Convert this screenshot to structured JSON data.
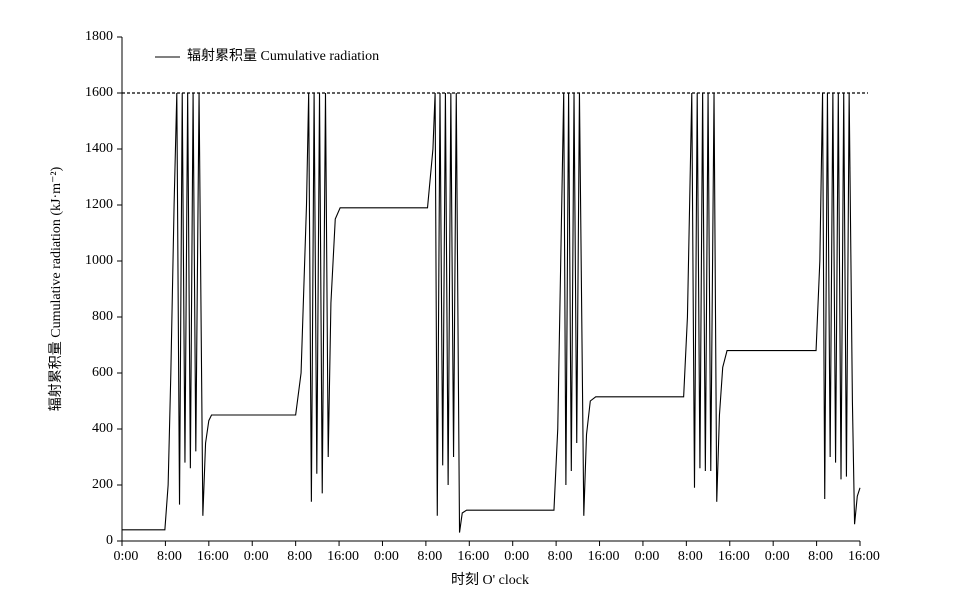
{
  "chart_data": {
    "type": "line",
    "x_label": "时刻 O' clock",
    "y_label": "辐射累积量 Cumulative radiation (kJ·m⁻²)",
    "xlim": [
      0,
      136
    ],
    "ylim": [
      0,
      1800
    ],
    "xticks": [
      {
        "value": 0,
        "label": "0:00"
      },
      {
        "value": 8,
        "label": "8:00"
      },
      {
        "value": 16,
        "label": "16:00"
      },
      {
        "value": 24,
        "label": "0:00"
      },
      {
        "value": 32,
        "label": "8:00"
      },
      {
        "value": 40,
        "label": "16:00"
      },
      {
        "value": 48,
        "label": "0:00"
      },
      {
        "value": 56,
        "label": "8:00"
      },
      {
        "value": 64,
        "label": "16:00"
      },
      {
        "value": 72,
        "label": "0:00"
      },
      {
        "value": 80,
        "label": "8:00"
      },
      {
        "value": 88,
        "label": "16:00"
      },
      {
        "value": 96,
        "label": "0:00"
      },
      {
        "value": 104,
        "label": "8:00"
      },
      {
        "value": 112,
        "label": "16:00"
      },
      {
        "value": 120,
        "label": "0:00"
      },
      {
        "value": 128,
        "label": "8:00"
      },
      {
        "value": 136,
        "label": "16:00"
      }
    ],
    "yticks": [
      0,
      200,
      400,
      600,
      800,
      1000,
      1200,
      1400,
      1600,
      1800
    ],
    "reference_line": 1600,
    "legend": "upper left",
    "series": [
      {
        "name": "辐射累积量 Cumulative radiation",
        "color": "#000000",
        "x": [
          0,
          7.9,
          8.5,
          9,
          9.6,
          10.1,
          10.6,
          11.1,
          11.6,
          12.1,
          12.6,
          13.1,
          13.6,
          14.2,
          14.9,
          15.4,
          16,
          16.5,
          32,
          33,
          34,
          34.4,
          34.9,
          35.4,
          35.9,
          36.4,
          36.9,
          37.5,
          38,
          38.5,
          39.3,
          40.2,
          56.3,
          57.3,
          57.7,
          58.1,
          58.6,
          59.1,
          59.6,
          60.1,
          60.6,
          61.1,
          61.6,
          62.2,
          62.7,
          63.5,
          79.6,
          80.3,
          81.4,
          81.8,
          82.3,
          82.8,
          83.3,
          83.8,
          84.3,
          85.1,
          85.6,
          86.3,
          87.3,
          103.5,
          104.2,
          105,
          105.5,
          106,
          106.5,
          107,
          107.5,
          108,
          108.5,
          109.1,
          109.6,
          110.1,
          110.7,
          111.5,
          127.9,
          128.6,
          129.1,
          129.5,
          130,
          130.5,
          131,
          131.5,
          132,
          132.5,
          133,
          133.5,
          134,
          134.6,
          135,
          135.5,
          136
        ],
        "values": [
          40,
          40,
          200,
          600,
          1200,
          1600,
          130,
          1600,
          280,
          1600,
          260,
          1600,
          320,
          1600,
          90,
          350,
          430,
          450,
          450,
          600,
          1200,
          1600,
          140,
          1600,
          240,
          1600,
          170,
          1600,
          300,
          850,
          1150,
          1190,
          1190,
          1400,
          1600,
          90,
          1600,
          270,
          1600,
          200,
          1600,
          300,
          1600,
          30,
          100,
          110,
          110,
          400,
          1600,
          200,
          1600,
          250,
          1600,
          350,
          1600,
          90,
          380,
          500,
          515,
          515,
          800,
          1600,
          190,
          1600,
          260,
          1600,
          250,
          1600,
          250,
          1600,
          140,
          450,
          620,
          680,
          680,
          1000,
          1600,
          150,
          1600,
          300,
          1600,
          280,
          1600,
          220,
          1600,
          230,
          1600,
          500,
          60,
          160,
          190
        ]
      }
    ]
  }
}
